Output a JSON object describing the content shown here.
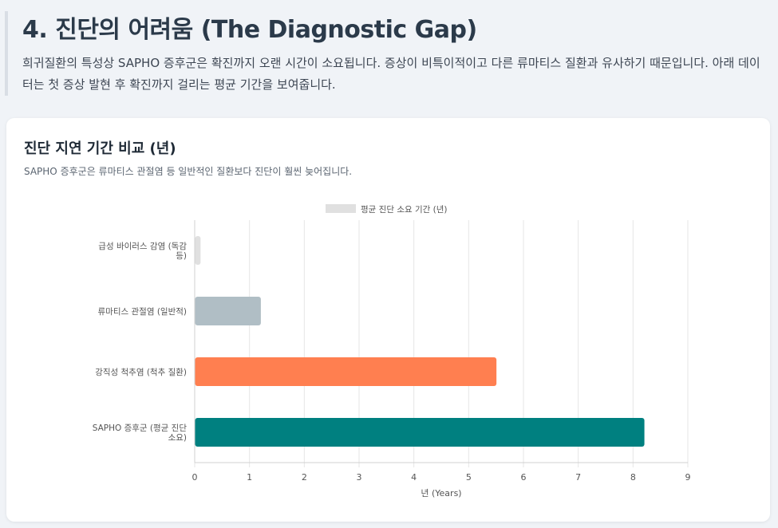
{
  "section": {
    "title": "4. 진단의 어려움 (The Diagnostic Gap)",
    "description": "희귀질환의 특성상 SAPHO 증후군은 확진까지 오랜 시간이 소요됩니다. 증상이 비특이적이고 다른 류마티스 질환과 유사하기 때문입니다. 아래 데이터는 첫 증상 발현 후 확진까지 걸리는 평균 기간을 보여줍니다."
  },
  "card": {
    "title": "진단 지연 기간 비교 (년)",
    "subtitle": "SAPHO 증후군은 류마티스 관절염 등 일반적인 질환보다 진단이 훨씬 늦어집니다."
  },
  "chart_data": {
    "type": "bar",
    "orientation": "horizontal",
    "categories": [
      [
        "급성 바이러스 감염 (독감",
        "등)"
      ],
      [
        "류마티스 관절염 (일반적)"
      ],
      [
        "강직성 척추염 (척추 질환)"
      ],
      [
        "SAPHO 증후군 (평균 진단",
        "소요)"
      ]
    ],
    "series": [
      {
        "name": "평균 진단 소요 기간 (년)",
        "values": [
          0.1,
          1.2,
          5.5,
          8.2
        ],
        "colors": [
          "#e0e0e0",
          "#b0bec5",
          "#ff7f50",
          "#008080"
        ]
      }
    ],
    "xlabel": "년 (Years)",
    "ylabel": "",
    "xlim": [
      0,
      9
    ],
    "ticks": [
      "0",
      "1",
      "2",
      "3",
      "4",
      "5",
      "6",
      "7",
      "8",
      "9"
    ],
    "legend_position": "top",
    "legend_color": "#e0e0e0",
    "grid": true
  }
}
